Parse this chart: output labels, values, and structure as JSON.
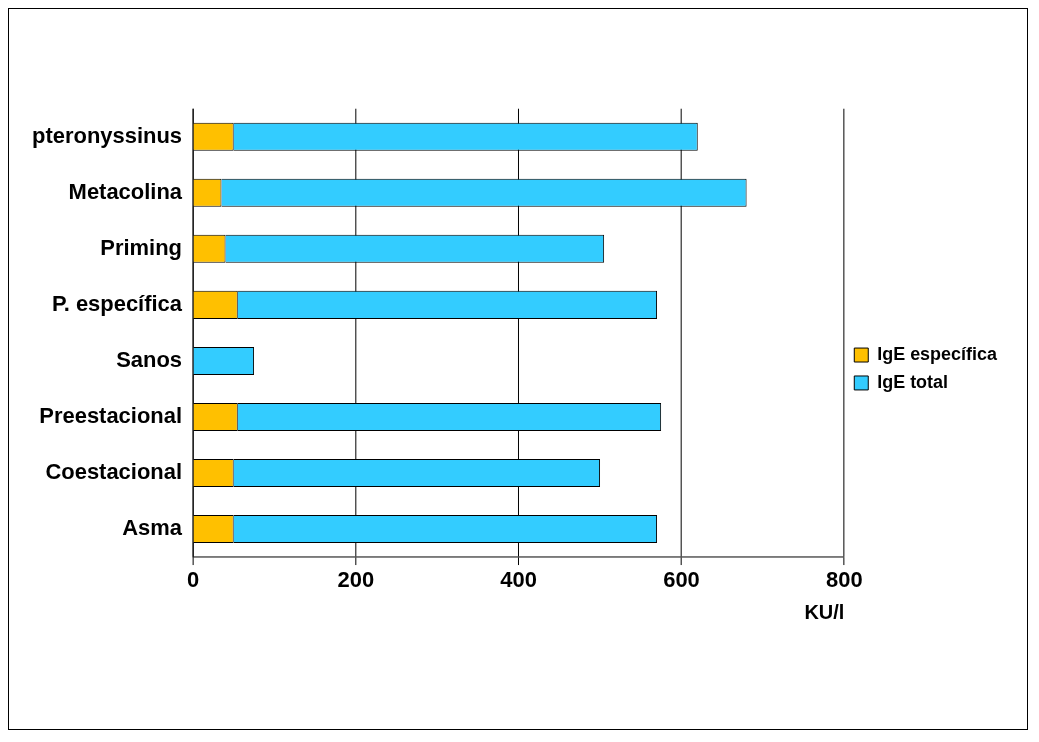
{
  "chart_data": {
    "type": "bar",
    "orientation": "horizontal",
    "stacked": true,
    "categories": [
      "pteronyssinus",
      "Metacolina",
      "Priming",
      "P. específica",
      "Sanos",
      "Preestacional",
      "Coestacional",
      "Asma"
    ],
    "series": [
      {
        "name": "IgE específica",
        "color": "#ffc000",
        "values": [
          50,
          35,
          40,
          55,
          0,
          55,
          50,
          50
        ]
      },
      {
        "name": "IgE total",
        "color": "#33ccff",
        "values": [
          570,
          645,
          465,
          515,
          75,
          520,
          450,
          520
        ]
      }
    ],
    "xlabel": "KU/l",
    "xlim": [
      0,
      800
    ],
    "xticks": [
      0,
      200,
      400,
      600,
      800
    ],
    "grid": "x",
    "legend": "right"
  }
}
